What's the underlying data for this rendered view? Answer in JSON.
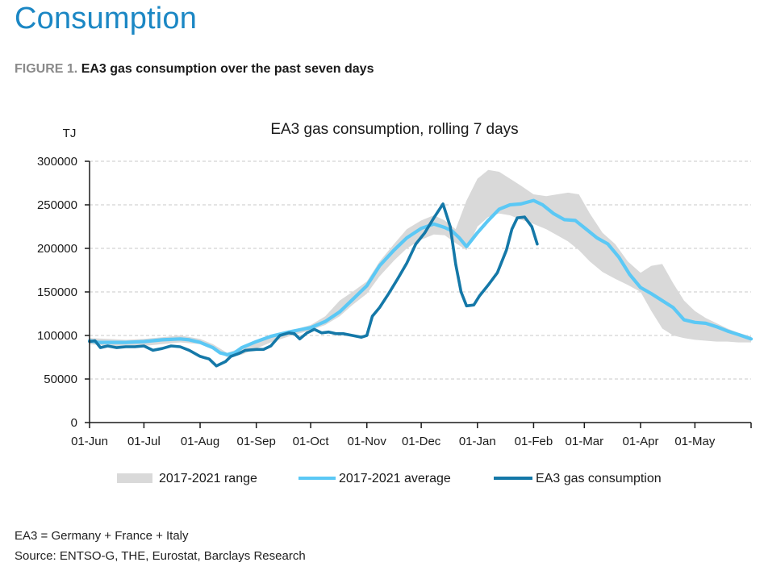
{
  "section_title": "Consumption",
  "figure_caption": {
    "label": "FIGURE 1.",
    "text": "EA3 gas consumption over the past seven days"
  },
  "chart_data": {
    "type": "line",
    "title": "EA3 gas consumption, rolling 7 days",
    "ylabel": "TJ",
    "xlabel": "",
    "ylim": [
      0,
      300000
    ],
    "yticks": [
      0,
      50000,
      100000,
      150000,
      200000,
      250000,
      300000
    ],
    "ytick_labels": [
      "0",
      "50000",
      "100000",
      "150000",
      "200000",
      "250000",
      "300000"
    ],
    "xlim": [
      0,
      365
    ],
    "xticks": [
      0,
      30,
      61,
      92,
      122,
      153,
      183,
      214,
      245,
      273,
      304,
      334
    ],
    "xtick_labels": [
      "01-Jun",
      "01-Jul",
      "01-Aug",
      "01-Sep",
      "01-Oct",
      "01-Nov",
      "01-Dec",
      "01-Jan",
      "01-Feb",
      "01-Mar",
      "01-Apr",
      "01-May"
    ],
    "grid": "horizontal dashed",
    "legend_position": "bottom",
    "colors": {
      "range": "#d9d9d9",
      "average": "#5bc8f5",
      "ea3": "#1478a8",
      "axis": "#1a1a1a",
      "grid": "#c8c8c8"
    },
    "series": [
      {
        "name": "2017-2021 range",
        "kind": "band",
        "x": [
          0,
          10,
          20,
          30,
          40,
          50,
          61,
          68,
          76,
          84,
          92,
          100,
          110,
          122,
          130,
          138,
          145,
          153,
          160,
          168,
          175,
          183,
          190,
          196,
          202,
          208,
          214,
          220,
          226,
          232,
          238,
          245,
          252,
          258,
          264,
          270,
          276,
          283,
          290,
          297,
          304,
          310,
          316,
          322,
          328,
          334,
          340,
          346,
          352,
          358,
          365
        ],
        "low": [
          90000,
          88000,
          87000,
          88000,
          90000,
          92000,
          90000,
          84000,
          75000,
          78000,
          85000,
          92000,
          99000,
          106000,
          112000,
          122000,
          135000,
          148000,
          168000,
          186000,
          200000,
          210000,
          216000,
          215000,
          206000,
          198000,
          225000,
          236000,
          240000,
          238000,
          233000,
          228000,
          222000,
          215000,
          208000,
          198000,
          185000,
          173000,
          165000,
          158000,
          150000,
          128000,
          108000,
          100000,
          97000,
          95000,
          94000,
          93000,
          93000,
          92000,
          92000
        ],
        "high": [
          97000,
          96000,
          95000,
          96000,
          98000,
          100000,
          96000,
          90000,
          80000,
          86000,
          93000,
          99000,
          105000,
          112000,
          122000,
          140000,
          150000,
          162000,
          185000,
          205000,
          222000,
          232000,
          238000,
          232000,
          222000,
          255000,
          280000,
          290000,
          288000,
          280000,
          272000,
          262000,
          260000,
          262000,
          264000,
          262000,
          240000,
          218000,
          205000,
          185000,
          172000,
          180000,
          182000,
          160000,
          140000,
          128000,
          120000,
          114000,
          108000,
          103000,
          99000
        ]
      },
      {
        "name": "2017-2021 average",
        "kind": "line",
        "x": [
          0,
          5,
          10,
          20,
          30,
          40,
          50,
          55,
          61,
          68,
          72,
          76,
          80,
          84,
          92,
          100,
          110,
          122,
          130,
          138,
          145,
          153,
          160,
          168,
          175,
          183,
          190,
          196,
          200,
          204,
          208,
          214,
          220,
          226,
          232,
          238,
          245,
          250,
          256,
          262,
          268,
          274,
          280,
          286,
          292,
          298,
          304,
          310,
          316,
          322,
          328,
          334,
          340,
          346,
          352,
          358,
          365
        ],
        "y": [
          94000,
          92000,
          92000,
          92000,
          93000,
          95000,
          96000,
          95000,
          92000,
          86000,
          80000,
          78000,
          80000,
          86000,
          93000,
          99000,
          104000,
          109000,
          116000,
          127000,
          141000,
          157000,
          180000,
          198000,
          212000,
          223000,
          228000,
          224000,
          220000,
          212000,
          202000,
          218000,
          232000,
          245000,
          250000,
          251000,
          255000,
          250000,
          240000,
          233000,
          232000,
          222000,
          212000,
          205000,
          190000,
          170000,
          155000,
          148000,
          140000,
          132000,
          118000,
          115000,
          114000,
          110000,
          105000,
          101000,
          96000
        ]
      },
      {
        "name": "EA3 gas consumption",
        "kind": "line",
        "x": [
          0,
          3,
          6,
          10,
          15,
          20,
          25,
          30,
          35,
          40,
          45,
          50,
          55,
          61,
          66,
          70,
          75,
          78,
          82,
          86,
          92,
          96,
          100,
          105,
          110,
          113,
          116,
          120,
          124,
          128,
          132,
          136,
          140,
          145,
          150,
          153,
          156,
          160,
          165,
          170,
          175,
          180,
          185,
          190,
          195,
          199,
          202,
          205,
          208,
          212,
          215,
          220,
          225,
          230,
          233,
          236,
          240,
          244,
          247
        ],
        "y": [
          93000,
          94000,
          86000,
          88000,
          86000,
          87000,
          87000,
          88000,
          83000,
          85000,
          88000,
          87000,
          83000,
          76000,
          73000,
          65000,
          70000,
          76000,
          79000,
          83000,
          84000,
          84000,
          88000,
          100000,
          103000,
          102000,
          96000,
          103000,
          107000,
          103000,
          104000,
          102000,
          102000,
          100000,
          98000,
          100000,
          122000,
          132000,
          148000,
          165000,
          183000,
          205000,
          218000,
          235000,
          251000,
          225000,
          182000,
          150000,
          134000,
          135000,
          145000,
          158000,
          172000,
          198000,
          222000,
          235000,
          236000,
          225000,
          205000
        ]
      }
    ],
    "legend": [
      "2017-2021 range",
      "2017-2021 average",
      "EA3 gas consumption"
    ]
  },
  "footnotes": {
    "definition": "EA3 = Germany + France + Italy",
    "source": "Source: ENTSO-G, THE, Eurostat, Barclays Research"
  }
}
